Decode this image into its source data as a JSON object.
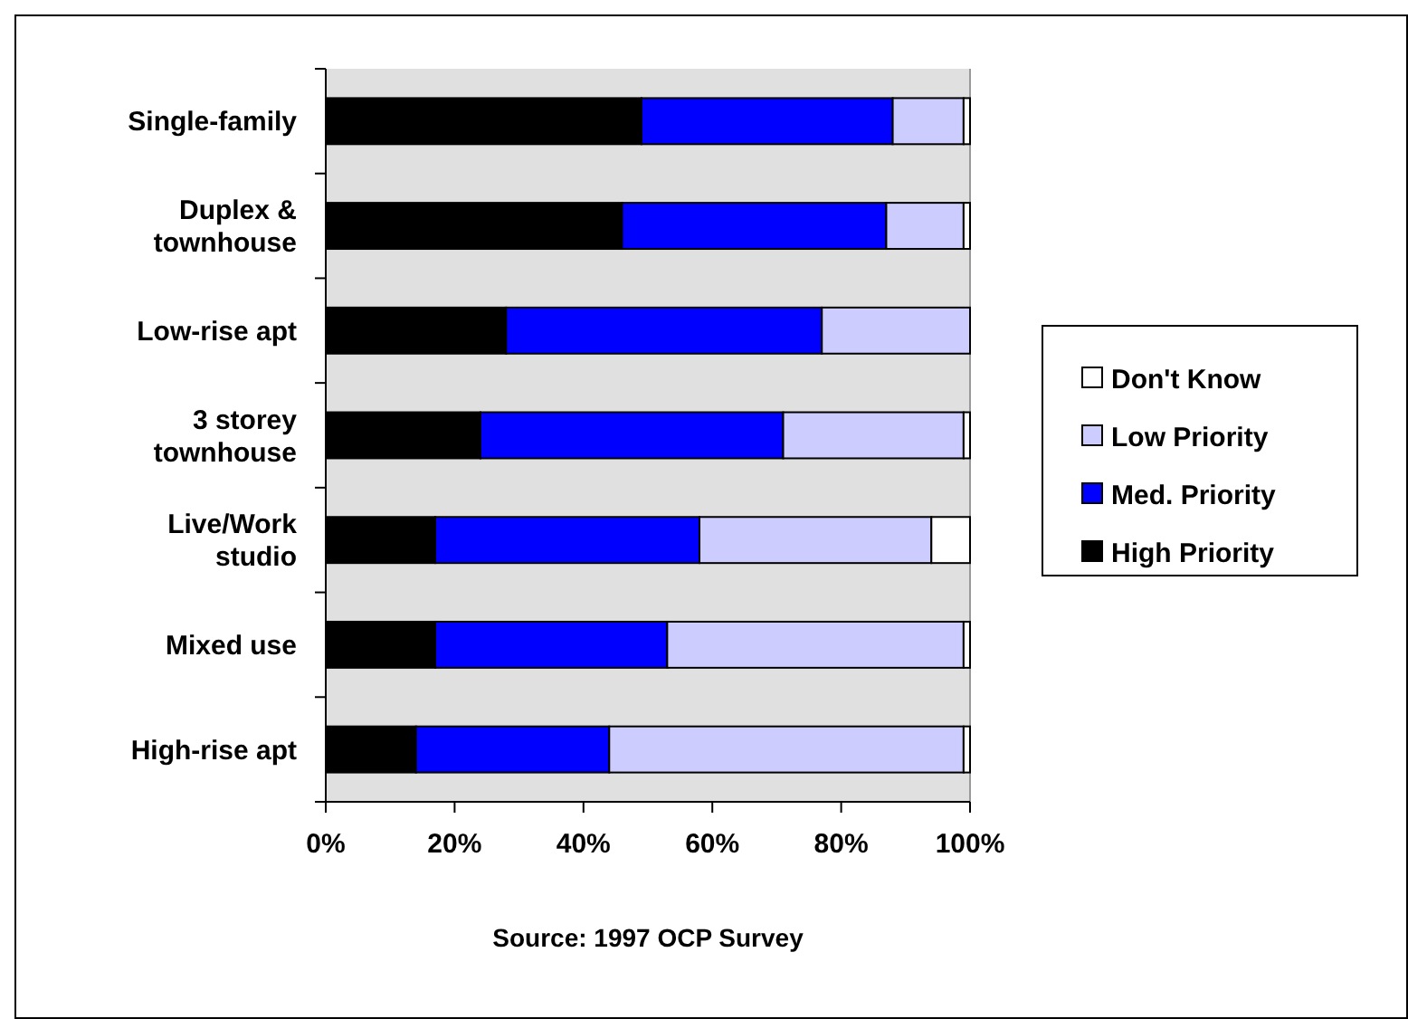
{
  "chart_data": {
    "type": "bar",
    "orientation": "horizontal",
    "stacked": true,
    "categories": [
      "Single-family",
      "Duplex & townhouse",
      "Low-rise apt",
      "3 storey townhouse",
      "Live/Work studio",
      "Mixed use",
      "High-rise apt"
    ],
    "series": [
      {
        "name": "High Priority",
        "color": "#000000",
        "values": [
          49,
          46,
          28,
          24,
          17,
          17,
          14
        ]
      },
      {
        "name": "Med. Priority",
        "color": "#0000ff",
        "values": [
          39,
          41,
          49,
          47,
          41,
          36,
          30
        ]
      },
      {
        "name": "Low Priority",
        "color": "#ccccff",
        "values": [
          11,
          12,
          23,
          28,
          36,
          46,
          55
        ]
      },
      {
        "name": "Don't Know",
        "color": "#ffffff",
        "values": [
          1,
          1,
          0,
          1,
          6,
          1,
          1
        ]
      }
    ],
    "xlim": [
      0,
      100
    ],
    "xticks": [
      {
        "value": 0,
        "label": "0%"
      },
      {
        "value": 20,
        "label": "20%"
      },
      {
        "value": 40,
        "label": "40%"
      },
      {
        "value": 60,
        "label": "60%"
      },
      {
        "value": 80,
        "label": "80%"
      },
      {
        "value": 100,
        "label": "100%"
      }
    ],
    "legend": "right",
    "annotations": [
      "Source: 1997 OCP Survey"
    ]
  }
}
